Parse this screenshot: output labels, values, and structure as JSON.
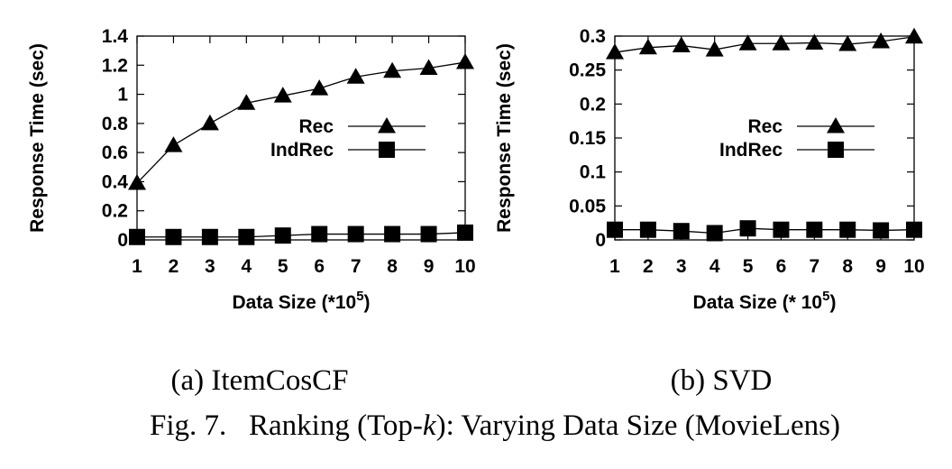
{
  "chart_data": [
    {
      "type": "line",
      "panel_label": "(a) ItemCosCF",
      "xlabel": "Data Size (*10",
      "xlabel_sup": "5",
      "xlabel_close": ")",
      "ylabel": "Response Time (sec)",
      "x": [
        1,
        2,
        3,
        4,
        5,
        6,
        7,
        8,
        9,
        10
      ],
      "xlim": [
        1,
        10
      ],
      "ylim": [
        0,
        1.4
      ],
      "yticks": [
        0,
        0.2,
        0.4,
        0.6,
        0.8,
        1,
        1.2,
        1.4
      ],
      "ytick_labels": [
        "0",
        "0.2",
        "0.4",
        "0.6",
        "0.8",
        "1",
        "1.2",
        "1.4"
      ],
      "legend_position": "center-right",
      "series": [
        {
          "name": "Rec",
          "marker": "triangle",
          "values": [
            0.39,
            0.65,
            0.8,
            0.94,
            0.99,
            1.04,
            1.12,
            1.16,
            1.18,
            1.22
          ]
        },
        {
          "name": "IndRec",
          "marker": "square",
          "values": [
            0.02,
            0.02,
            0.02,
            0.02,
            0.03,
            0.04,
            0.04,
            0.04,
            0.04,
            0.05
          ]
        }
      ]
    },
    {
      "type": "line",
      "panel_label": "(b) SVD",
      "xlabel": "Data Size (* 10",
      "xlabel_sup": "5",
      "xlabel_close": ")",
      "ylabel": "Response Time (sec)",
      "x": [
        1,
        2,
        3,
        4,
        5,
        6,
        7,
        8,
        9,
        10
      ],
      "xlim": [
        1,
        10
      ],
      "ylim": [
        0,
        0.3
      ],
      "yticks": [
        0,
        0.05,
        0.1,
        0.15,
        0.2,
        0.25,
        0.3
      ],
      "ytick_labels": [
        "0",
        "0.05",
        "0.1",
        "0.15",
        "0.2",
        "0.25",
        "0.3"
      ],
      "legend_position": "center-right",
      "series": [
        {
          "name": "Rec",
          "marker": "triangle",
          "values": [
            0.276,
            0.283,
            0.286,
            0.28,
            0.289,
            0.289,
            0.29,
            0.288,
            0.292,
            0.299
          ]
        },
        {
          "name": "IndRec",
          "marker": "square",
          "values": [
            0.015,
            0.015,
            0.013,
            0.01,
            0.017,
            0.015,
            0.015,
            0.015,
            0.014,
            0.015
          ]
        }
      ]
    }
  ],
  "caption": {
    "prefix": "Fig. 7.",
    "text_before": "Ranking (Top-",
    "italic": "k",
    "text_after": "): Varying Data Size (MovieLens)"
  }
}
